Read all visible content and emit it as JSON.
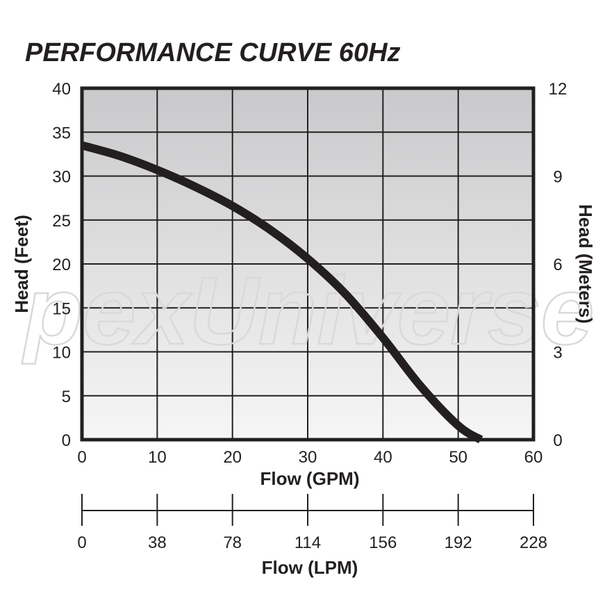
{
  "watermark": "pexUniverse",
  "chart_data": {
    "type": "line",
    "title": "PERFORMANCE CURVE 60Hz",
    "xlabel": "Flow (GPM)",
    "ylabel": "Head (Feet)",
    "y2label": "Head (Meters)",
    "x2label": "Flow (LPM)",
    "xlim": [
      0,
      60
    ],
    "ylim": [
      0,
      40
    ],
    "y2lim": [
      0,
      12
    ],
    "grid": true,
    "x_ticks": [
      "0",
      "10",
      "20",
      "30",
      "40",
      "50",
      "60"
    ],
    "y_ticks": [
      "0",
      "5",
      "10",
      "15",
      "20",
      "25",
      "30",
      "35",
      "40"
    ],
    "y2_ticks": [
      "0",
      "3",
      "6",
      "9",
      "12"
    ],
    "x2_ticks": [
      "0",
      "38",
      "78",
      "114",
      "156",
      "192",
      "228"
    ],
    "series": [
      {
        "x": [
          0,
          5,
          10,
          15,
          20,
          25,
          30,
          35,
          40,
          45,
          50,
          53
        ],
        "y": [
          33.5,
          32.3,
          30.7,
          28.8,
          26.6,
          23.9,
          20.6,
          16.6,
          11.6,
          6.1,
          1.6,
          0
        ]
      }
    ]
  }
}
